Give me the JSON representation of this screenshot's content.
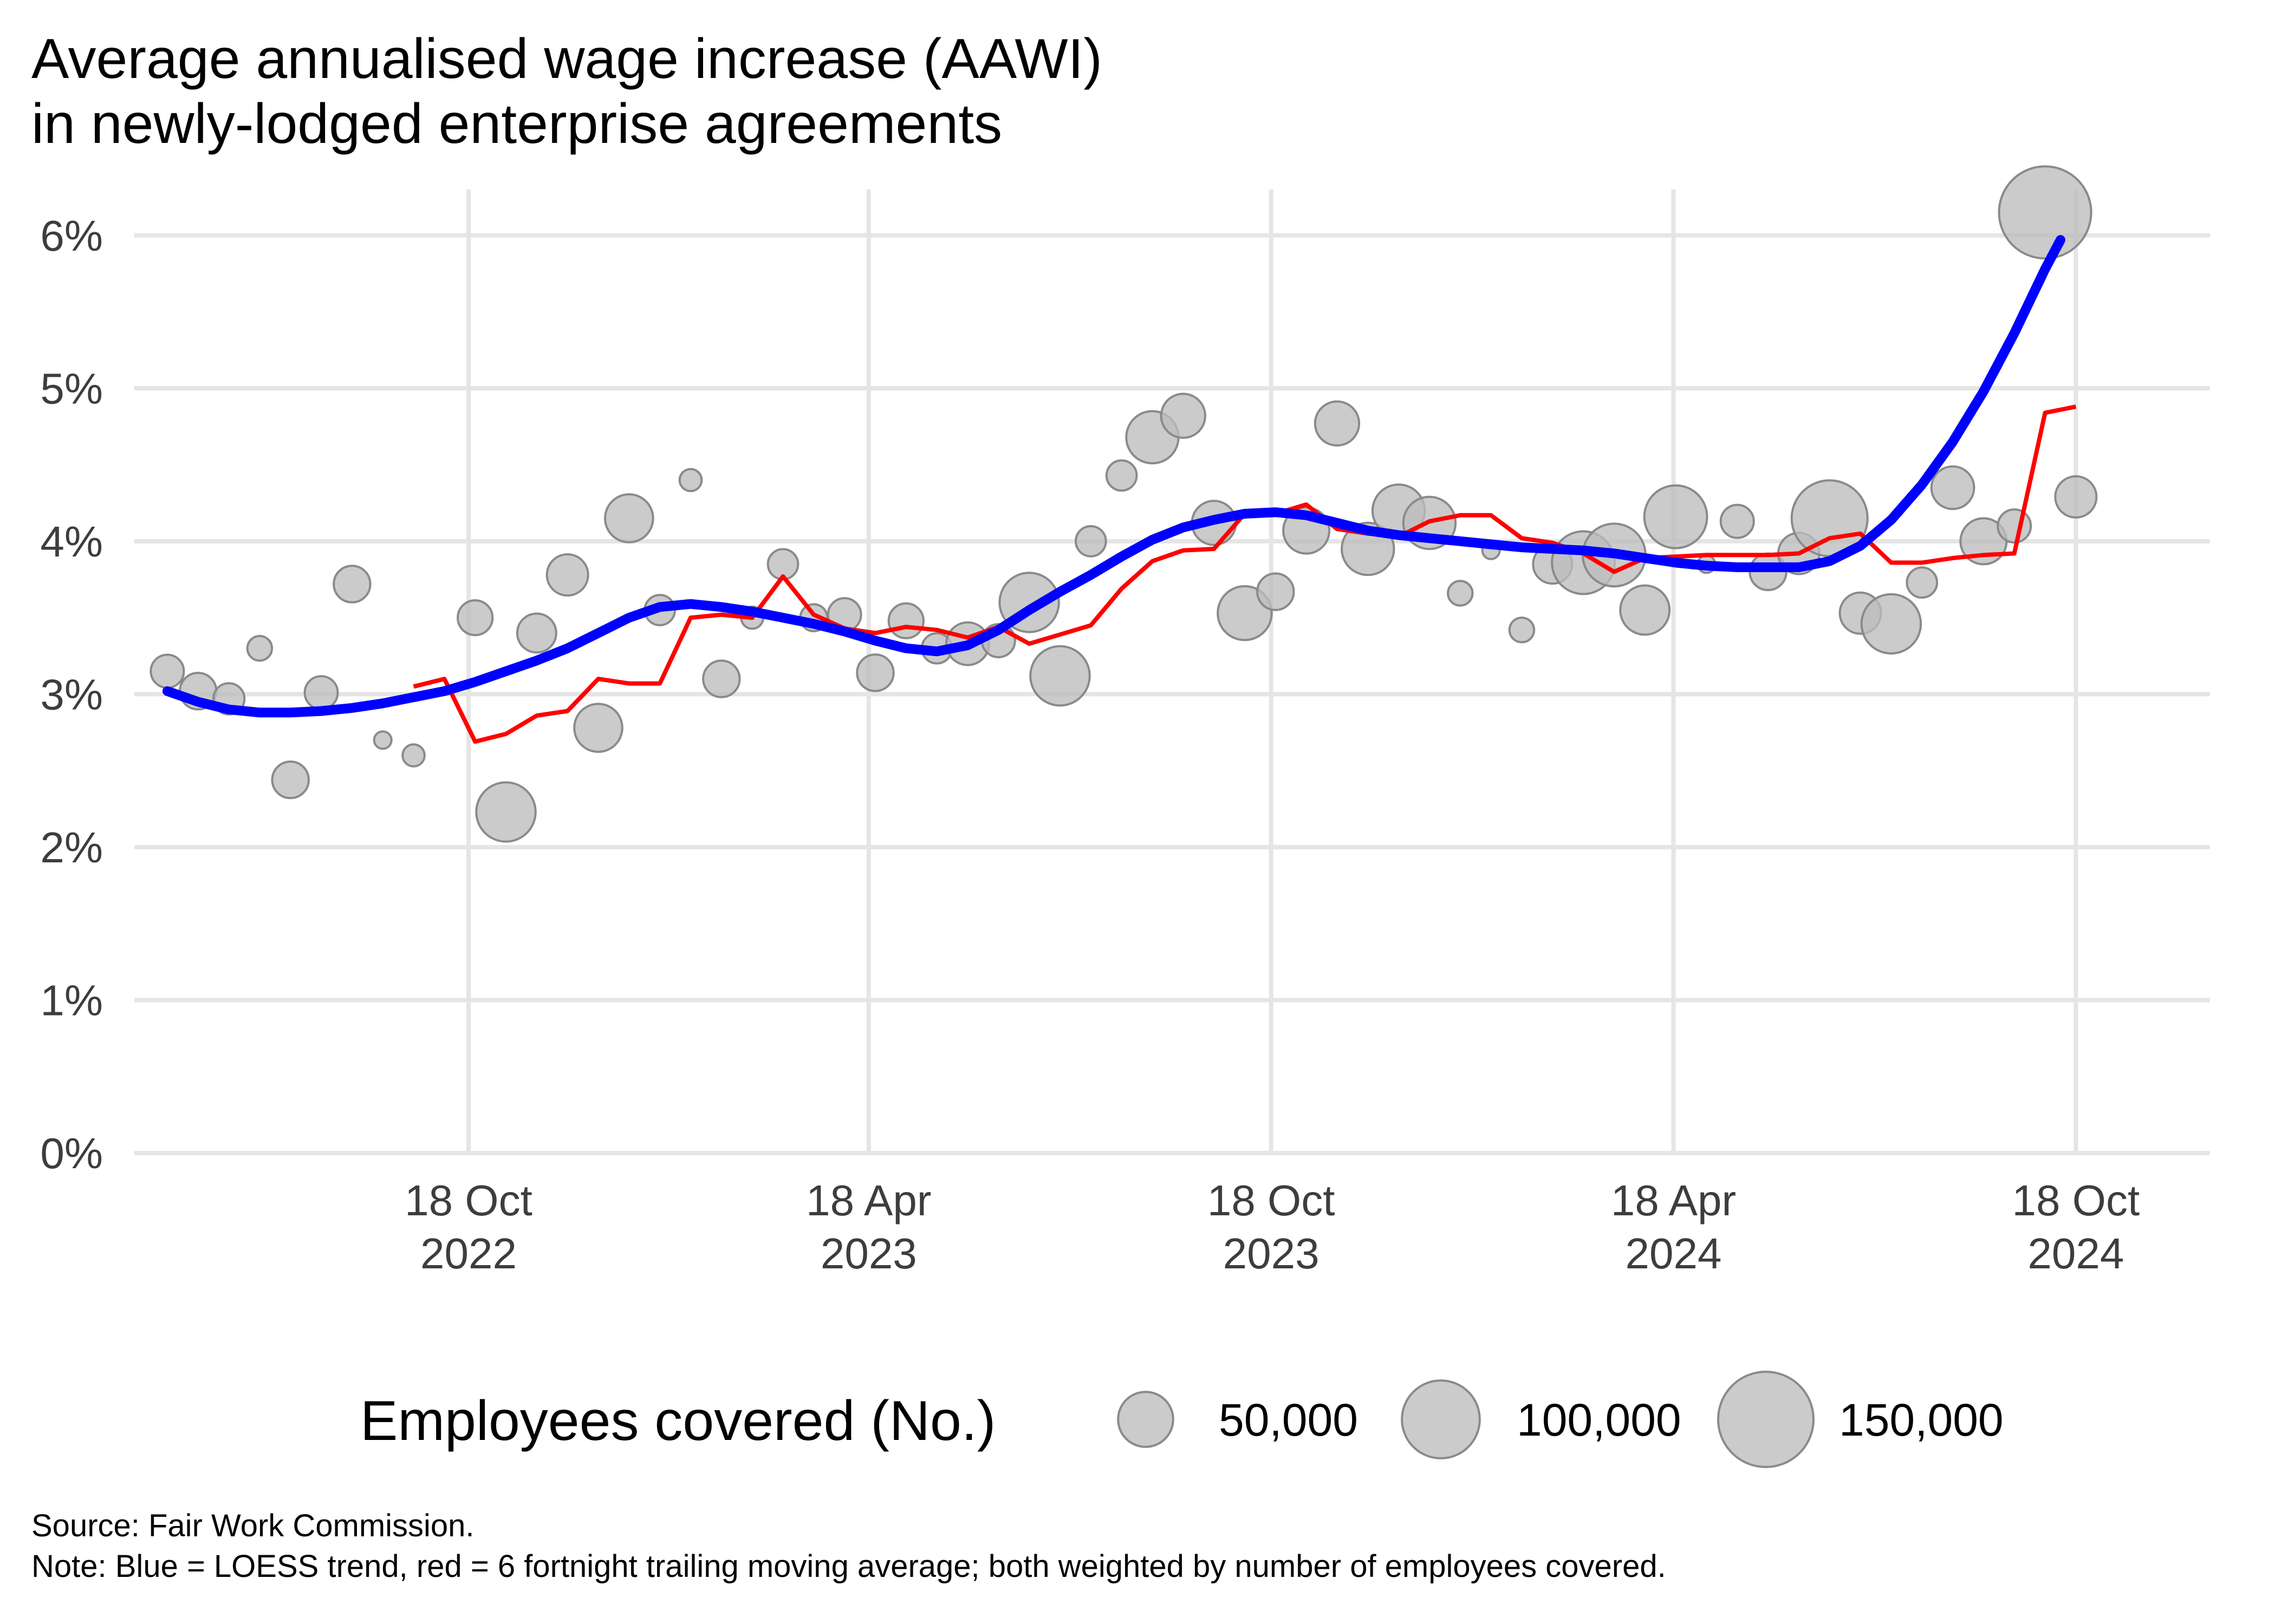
{
  "title_line1": "Average annualised wage increase (AAWI)",
  "title_line2": "in newly-lodged enterprise agreements",
  "source": "Source: Fair Work Commission.",
  "note": "Note: Blue = LOESS trend, red = 6 fortnight trailing moving average; both weighted by number of employees covered.",
  "colors": {
    "trend": "#0000FF",
    "moving_average": "#FF0000",
    "points": "#BDBDBD",
    "grid": "#E5E5E5"
  },
  "chart_data": {
    "type": "scatter",
    "xlabel": "",
    "ylabel": "",
    "ylim": [
      0,
      6.3
    ],
    "y_unit": "%",
    "yticks": [
      {
        "value": 0,
        "label": "0%"
      },
      {
        "value": 1,
        "label": "1%"
      },
      {
        "value": 2,
        "label": "2%"
      },
      {
        "value": 3,
        "label": "3%"
      },
      {
        "value": 4,
        "label": "4%"
      },
      {
        "value": 5,
        "label": "5%"
      },
      {
        "value": 6,
        "label": "6%"
      }
    ],
    "xlim": [
      "2022-05-19",
      "2024-12-18"
    ],
    "xticks": [
      {
        "date": "2022-10-18",
        "line1": "18 Oct",
        "line2": "2022"
      },
      {
        "date": "2023-04-18",
        "line1": "18 Apr",
        "line2": "2023"
      },
      {
        "date": "2023-10-18",
        "line1": "18 Oct",
        "line2": "2023"
      },
      {
        "date": "2024-04-18",
        "line1": "18 Apr",
        "line2": "2024"
      },
      {
        "date": "2024-10-18",
        "line1": "18 Oct",
        "line2": "2024"
      }
    ],
    "grid": true,
    "legend": {
      "title": "Employees covered (No.)",
      "placement": "bottom",
      "entries": [
        {
          "value": 50000,
          "label": "50,000"
        },
        {
          "value": 100000,
          "label": "100,000"
        },
        {
          "value": 150000,
          "label": "150,000"
        }
      ]
    },
    "points": [
      {
        "date": "2022-06-03",
        "value": 3.15,
        "employees": 18000
      },
      {
        "date": "2022-06-17",
        "value": 3.02,
        "employees": 22000
      },
      {
        "date": "2022-07-01",
        "value": 2.97,
        "employees": 16000
      },
      {
        "date": "2022-07-15",
        "value": 3.3,
        "employees": 10000
      },
      {
        "date": "2022-07-29",
        "value": 2.44,
        "employees": 22000
      },
      {
        "date": "2022-08-12",
        "value": 3.01,
        "employees": 18000
      },
      {
        "date": "2022-08-26",
        "value": 3.72,
        "employees": 22000
      },
      {
        "date": "2022-09-09",
        "value": 2.7,
        "employees": 5000
      },
      {
        "date": "2022-09-23",
        "value": 2.6,
        "employees": 8000
      },
      {
        "date": "2022-10-21",
        "value": 3.5,
        "employees": 20000
      },
      {
        "date": "2022-11-04",
        "value": 2.23,
        "employees": 58000
      },
      {
        "date": "2022-11-18",
        "value": 3.4,
        "employees": 25000
      },
      {
        "date": "2022-12-02",
        "value": 3.78,
        "employees": 28000
      },
      {
        "date": "2022-12-16",
        "value": 2.78,
        "employees": 38000
      },
      {
        "date": "2022-12-30",
        "value": 4.15,
        "employees": 38000
      },
      {
        "date": "2023-01-13",
        "value": 3.55,
        "employees": 15000
      },
      {
        "date": "2023-01-27",
        "value": 4.4,
        "employees": 8000
      },
      {
        "date": "2023-02-10",
        "value": 3.1,
        "employees": 22000
      },
      {
        "date": "2023-02-24",
        "value": 3.5,
        "employees": 8000
      },
      {
        "date": "2023-03-10",
        "value": 3.85,
        "employees": 15000
      },
      {
        "date": "2023-03-24",
        "value": 3.5,
        "employees": 12000
      },
      {
        "date": "2023-04-07",
        "value": 3.52,
        "employees": 18000
      },
      {
        "date": "2023-04-21",
        "value": 3.14,
        "employees": 22000
      },
      {
        "date": "2023-05-05",
        "value": 3.48,
        "employees": 20000
      },
      {
        "date": "2023-05-19",
        "value": 3.3,
        "employees": 15000
      },
      {
        "date": "2023-06-02",
        "value": 3.33,
        "employees": 30000
      },
      {
        "date": "2023-06-16",
        "value": 3.35,
        "employees": 18000
      },
      {
        "date": "2023-06-30",
        "value": 3.6,
        "employees": 58000
      },
      {
        "date": "2023-07-14",
        "value": 3.12,
        "employees": 58000
      },
      {
        "date": "2023-07-28",
        "value": 4.0,
        "employees": 15000
      },
      {
        "date": "2023-08-11",
        "value": 4.43,
        "employees": 15000
      },
      {
        "date": "2023-08-25",
        "value": 4.68,
        "employees": 45000
      },
      {
        "date": "2023-09-08",
        "value": 4.82,
        "employees": 32000
      },
      {
        "date": "2023-09-22",
        "value": 4.12,
        "employees": 32000
      },
      {
        "date": "2023-10-06",
        "value": 3.53,
        "employees": 48000
      },
      {
        "date": "2023-10-20",
        "value": 3.67,
        "employees": 22000
      },
      {
        "date": "2023-11-03",
        "value": 4.07,
        "employees": 35000
      },
      {
        "date": "2023-11-17",
        "value": 4.77,
        "employees": 32000
      },
      {
        "date": "2023-12-01",
        "value": 3.95,
        "employees": 45000
      },
      {
        "date": "2023-12-15",
        "value": 4.2,
        "employees": 45000
      },
      {
        "date": "2023-12-29",
        "value": 4.12,
        "employees": 45000
      },
      {
        "date": "2024-01-12",
        "value": 3.66,
        "employees": 10000
      },
      {
        "date": "2024-01-26",
        "value": 3.94,
        "employees": 3000
      },
      {
        "date": "2024-02-09",
        "value": 3.42,
        "employees": 10000
      },
      {
        "date": "2024-02-23",
        "value": 3.85,
        "employees": 25000
      },
      {
        "date": "2024-03-08",
        "value": 3.86,
        "employees": 65000
      },
      {
        "date": "2024-03-22",
        "value": 3.91,
        "employees": 65000
      },
      {
        "date": "2024-04-05",
        "value": 3.55,
        "employees": 40000
      },
      {
        "date": "2024-04-19",
        "value": 4.16,
        "employees": 65000
      },
      {
        "date": "2024-05-03",
        "value": 3.85,
        "employees": 5000
      },
      {
        "date": "2024-05-17",
        "value": 4.13,
        "employees": 18000
      },
      {
        "date": "2024-05-31",
        "value": 3.8,
        "employees": 22000
      },
      {
        "date": "2024-06-14",
        "value": 3.92,
        "employees": 28000
      },
      {
        "date": "2024-06-28",
        "value": 4.15,
        "employees": 95000
      },
      {
        "date": "2024-07-12",
        "value": 3.53,
        "employees": 28000
      },
      {
        "date": "2024-07-26",
        "value": 3.46,
        "employees": 58000
      },
      {
        "date": "2024-08-09",
        "value": 3.73,
        "employees": 15000
      },
      {
        "date": "2024-08-23",
        "value": 4.35,
        "employees": 30000
      },
      {
        "date": "2024-09-06",
        "value": 4.0,
        "employees": 35000
      },
      {
        "date": "2024-09-20",
        "value": 4.1,
        "employees": 18000
      },
      {
        "date": "2024-10-04",
        "value": 6.15,
        "employees": 140000
      },
      {
        "date": "2024-10-18",
        "value": 4.29,
        "employees": 28000
      }
    ],
    "series": [
      {
        "values": [
          {
            "date": "2022-06-03",
            "value": 3.02
          },
          {
            "date": "2022-06-17",
            "value": 2.95
          },
          {
            "date": "2022-07-01",
            "value": 2.9
          },
          {
            "date": "2022-07-15",
            "value": 2.88
          },
          {
            "date": "2022-07-29",
            "value": 2.88
          },
          {
            "date": "2022-08-12",
            "value": 2.89
          },
          {
            "date": "2022-08-26",
            "value": 2.91
          },
          {
            "date": "2022-09-09",
            "value": 2.94
          },
          {
            "date": "2022-09-23",
            "value": 2.98
          },
          {
            "date": "2022-10-07",
            "value": 3.02
          },
          {
            "date": "2022-10-21",
            "value": 3.08
          },
          {
            "date": "2022-11-04",
            "value": 3.15
          },
          {
            "date": "2022-11-18",
            "value": 3.22
          },
          {
            "date": "2022-12-02",
            "value": 3.3
          },
          {
            "date": "2022-12-16",
            "value": 3.4
          },
          {
            "date": "2022-12-30",
            "value": 3.5
          },
          {
            "date": "2023-01-13",
            "value": 3.57
          },
          {
            "date": "2023-01-27",
            "value": 3.59
          },
          {
            "date": "2023-02-10",
            "value": 3.57
          },
          {
            "date": "2023-02-24",
            "value": 3.54
          },
          {
            "date": "2023-03-10",
            "value": 3.5
          },
          {
            "date": "2023-03-24",
            "value": 3.46
          },
          {
            "date": "2023-04-07",
            "value": 3.41
          },
          {
            "date": "2023-04-21",
            "value": 3.35
          },
          {
            "date": "2023-05-05",
            "value": 3.3
          },
          {
            "date": "2023-05-19",
            "value": 3.28
          },
          {
            "date": "2023-06-02",
            "value": 3.32
          },
          {
            "date": "2023-06-16",
            "value": 3.42
          },
          {
            "date": "2023-06-30",
            "value": 3.55
          },
          {
            "date": "2023-07-14",
            "value": 3.67
          },
          {
            "date": "2023-07-28",
            "value": 3.78
          },
          {
            "date": "2023-08-11",
            "value": 3.9
          },
          {
            "date": "2023-08-25",
            "value": 4.01
          },
          {
            "date": "2023-09-08",
            "value": 4.09
          },
          {
            "date": "2023-09-22",
            "value": 4.14
          },
          {
            "date": "2023-10-06",
            "value": 4.18
          },
          {
            "date": "2023-10-20",
            "value": 4.19
          },
          {
            "date": "2023-11-03",
            "value": 4.17
          },
          {
            "date": "2023-11-17",
            "value": 4.12
          },
          {
            "date": "2023-12-01",
            "value": 4.07
          },
          {
            "date": "2023-12-15",
            "value": 4.04
          },
          {
            "date": "2023-12-29",
            "value": 4.02
          },
          {
            "date": "2024-01-12",
            "value": 4.0
          },
          {
            "date": "2024-01-26",
            "value": 3.98
          },
          {
            "date": "2024-02-09",
            "value": 3.96
          },
          {
            "date": "2024-02-23",
            "value": 3.95
          },
          {
            "date": "2024-03-08",
            "value": 3.94
          },
          {
            "date": "2024-03-22",
            "value": 3.92
          },
          {
            "date": "2024-04-05",
            "value": 3.89
          },
          {
            "date": "2024-04-19",
            "value": 3.86
          },
          {
            "date": "2024-05-03",
            "value": 3.84
          },
          {
            "date": "2024-05-17",
            "value": 3.83
          },
          {
            "date": "2024-05-31",
            "value": 3.83
          },
          {
            "date": "2024-06-14",
            "value": 3.83
          },
          {
            "date": "2024-06-28",
            "value": 3.87
          },
          {
            "date": "2024-07-12",
            "value": 3.97
          },
          {
            "date": "2024-07-26",
            "value": 4.14
          },
          {
            "date": "2024-08-09",
            "value": 4.37
          },
          {
            "date": "2024-08-23",
            "value": 4.65
          },
          {
            "date": "2024-09-06",
            "value": 4.98
          },
          {
            "date": "2024-09-20",
            "value": 5.36
          },
          {
            "date": "2024-10-04",
            "value": 5.78
          },
          {
            "date": "2024-10-11",
            "value": 5.97
          }
        ]
      },
      {
        "values": [
          {
            "date": "2022-09-23",
            "value": 3.05
          },
          {
            "date": "2022-10-07",
            "value": 3.1
          },
          {
            "date": "2022-10-21",
            "value": 2.69
          },
          {
            "date": "2022-11-04",
            "value": 2.74
          },
          {
            "date": "2022-11-18",
            "value": 2.86
          },
          {
            "date": "2022-12-02",
            "value": 2.89
          },
          {
            "date": "2022-12-16",
            "value": 3.1
          },
          {
            "date": "2022-12-30",
            "value": 3.07
          },
          {
            "date": "2023-01-13",
            "value": 3.07
          },
          {
            "date": "2023-01-27",
            "value": 3.5
          },
          {
            "date": "2023-02-10",
            "value": 3.52
          },
          {
            "date": "2023-02-24",
            "value": 3.5
          },
          {
            "date": "2023-03-10",
            "value": 3.77
          },
          {
            "date": "2023-03-24",
            "value": 3.52
          },
          {
            "date": "2023-04-07",
            "value": 3.43
          },
          {
            "date": "2023-04-21",
            "value": 3.4
          },
          {
            "date": "2023-05-05",
            "value": 3.44
          },
          {
            "date": "2023-05-19",
            "value": 3.42
          },
          {
            "date": "2023-06-02",
            "value": 3.37
          },
          {
            "date": "2023-06-16",
            "value": 3.44
          },
          {
            "date": "2023-06-30",
            "value": 3.33
          },
          {
            "date": "2023-07-14",
            "value": 3.39
          },
          {
            "date": "2023-07-28",
            "value": 3.45
          },
          {
            "date": "2023-08-11",
            "value": 3.69
          },
          {
            "date": "2023-08-25",
            "value": 3.87
          },
          {
            "date": "2023-09-08",
            "value": 3.94
          },
          {
            "date": "2023-09-22",
            "value": 3.95
          },
          {
            "date": "2023-10-06",
            "value": 4.18
          },
          {
            "date": "2023-10-20",
            "value": 4.18
          },
          {
            "date": "2023-11-03",
            "value": 4.24
          },
          {
            "date": "2023-11-17",
            "value": 4.08
          },
          {
            "date": "2023-12-01",
            "value": 4.05
          },
          {
            "date": "2023-12-15",
            "value": 4.03
          },
          {
            "date": "2023-12-29",
            "value": 4.13
          },
          {
            "date": "2024-01-12",
            "value": 4.17
          },
          {
            "date": "2024-01-26",
            "value": 4.17
          },
          {
            "date": "2024-02-09",
            "value": 4.02
          },
          {
            "date": "2024-02-23",
            "value": 3.99
          },
          {
            "date": "2024-03-08",
            "value": 3.92
          },
          {
            "date": "2024-03-22",
            "value": 3.8
          },
          {
            "date": "2024-04-05",
            "value": 3.89
          },
          {
            "date": "2024-04-19",
            "value": 3.9
          },
          {
            "date": "2024-05-03",
            "value": 3.91
          },
          {
            "date": "2024-05-17",
            "value": 3.91
          },
          {
            "date": "2024-05-31",
            "value": 3.91
          },
          {
            "date": "2024-06-14",
            "value": 3.92
          },
          {
            "date": "2024-06-28",
            "value": 4.02
          },
          {
            "date": "2024-07-12",
            "value": 4.05
          },
          {
            "date": "2024-07-26",
            "value": 3.86
          },
          {
            "date": "2024-08-09",
            "value": 3.86
          },
          {
            "date": "2024-08-23",
            "value": 3.89
          },
          {
            "date": "2024-09-06",
            "value": 3.91
          },
          {
            "date": "2024-09-20",
            "value": 3.92
          },
          {
            "date": "2024-10-04",
            "value": 4.84
          },
          {
            "date": "2024-10-18",
            "value": 4.88
          }
        ]
      }
    ]
  }
}
